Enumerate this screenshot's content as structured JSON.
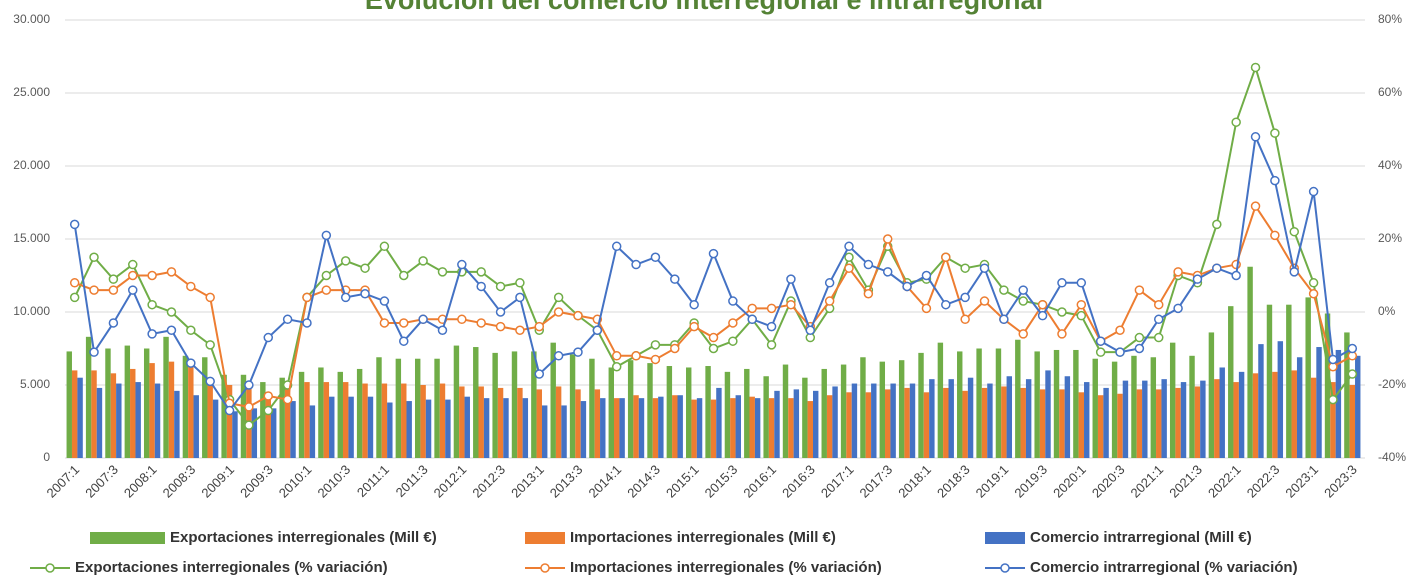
{
  "chart_data": {
    "type": "bar",
    "title": "Evolución del comercio interregional e intrarregional",
    "categories": [
      "2007:1",
      null,
      "2007:3",
      null,
      "2008:1",
      null,
      "2008:3",
      null,
      "2009:1",
      null,
      "2009:3",
      null,
      "2010:1",
      null,
      "2010:3",
      null,
      "2011:1",
      null,
      "2011:3",
      null,
      "2012:1",
      null,
      "2012:3",
      null,
      "2013:1",
      null,
      "2013:3",
      null,
      "2014:1",
      null,
      "2014:3",
      null,
      "2015:1",
      null,
      "2015:3",
      null,
      "2016:1",
      null,
      "2016:3",
      null,
      "2017:1",
      null,
      "2017:3",
      null,
      "2018:1",
      null,
      "2018:3",
      null,
      "2019:1",
      null,
      "2019:3",
      null,
      "2020:1",
      null,
      "2020:3",
      null,
      "2021:1",
      null,
      "2021:3",
      null,
      "2022:1",
      null,
      "2022:3",
      null,
      "2023:1",
      null,
      "2023:3"
    ],
    "ylim": [
      0,
      30000
    ],
    "yticks": [
      0,
      {
        "value": 5000,
        "label": "5.000"
      },
      {
        "value": 10000,
        "label": "10.000"
      },
      {
        "value": 15000,
        "label": "15.000"
      },
      {
        "value": 20000,
        "label": "20.000"
      },
      {
        "value": 25000,
        "label": "25.000"
      },
      {
        "value": 30000,
        "label": "30.000"
      }
    ],
    "y2lim": [
      -40,
      80
    ],
    "y2ticks": [
      {
        "value": -40,
        "label": "-40%"
      },
      {
        "value": -20,
        "label": "-20%"
      },
      {
        "value": 0,
        "label": "0%"
      },
      {
        "value": 20,
        "label": "20%"
      },
      {
        "value": 40,
        "label": "40%"
      },
      {
        "value": 60,
        "label": "60%"
      },
      {
        "value": 80,
        "label": "80%"
      }
    ],
    "grid": true,
    "legend": "bottom",
    "series": [
      {
        "name": "Exportaciones interregionales (Mill €)",
        "type": "bar",
        "color": "#70ad47",
        "values": [
          7300,
          8300,
          7500,
          7700,
          7500,
          8300,
          7000,
          6900,
          5700,
          5700,
          5200,
          5500,
          5900,
          6200,
          5900,
          6100,
          6900,
          6800,
          6800,
          6800,
          7700,
          7600,
          7200,
          7300,
          7300,
          7900,
          7100,
          6800,
          6200,
          6700,
          6500,
          6300,
          6200,
          6300,
          5900,
          6100,
          5600,
          6400,
          5500,
          6100,
          6400,
          6900,
          6600,
          6700,
          7200,
          7900,
          7300,
          7500,
          7500,
          8100,
          7300,
          7400,
          7400,
          6800,
          6600,
          7000,
          6900,
          7900,
          7000,
          8600,
          10400,
          13100,
          10500,
          10500,
          11000,
          9900,
          8600
        ]
      },
      {
        "name": "Importaciones interregionales (Mill €)",
        "type": "bar",
        "color": "#ed7d31",
        "values": [
          6000,
          6000,
          5800,
          6100,
          6500,
          6600,
          6300,
          5000,
          5000,
          4900,
          4500,
          4800,
          5200,
          5200,
          5200,
          5100,
          5100,
          5100,
          5000,
          5100,
          4900,
          4900,
          4800,
          4800,
          4700,
          4900,
          4700,
          4700,
          4100,
          4300,
          4100,
          4300,
          4000,
          4000,
          4100,
          4200,
          4100,
          4100,
          3900,
          4300,
          4500,
          4500,
          4700,
          4800,
          4500,
          4800,
          4600,
          4800,
          4900,
          4800,
          4700,
          4700,
          4500,
          4300,
          4400,
          4700,
          4700,
          4800,
          4900,
          5400,
          5200,
          5800,
          5900,
          6000,
          5500,
          5200,
          5000
        ]
      },
      {
        "name": "Comercio intrarregional (Mill €)",
        "type": "bar",
        "color": "#4472c4",
        "values": [
          5500,
          4800,
          5100,
          5200,
          5100,
          4600,
          4300,
          4000,
          3200,
          3400,
          3400,
          3900,
          3600,
          4200,
          4200,
          4200,
          3800,
          3900,
          4000,
          4000,
          4200,
          4100,
          4100,
          4100,
          3600,
          3600,
          3900,
          4100,
          4100,
          4100,
          4200,
          4300,
          4100,
          4800,
          4300,
          4100,
          4600,
          4700,
          4600,
          4900,
          5100,
          5100,
          5100,
          5100,
          5400,
          5400,
          5500,
          5100,
          5600,
          5400,
          6000,
          5600,
          5200,
          4800,
          5300,
          5300,
          5400,
          5200,
          5300,
          6200,
          5900,
          7800,
          8000,
          6900,
          7600,
          7400,
          7000
        ]
      },
      {
        "name": "Exportaciones interregionales  (% variación)",
        "type": "line",
        "axis": "y2",
        "color": "#70ad47",
        "values": [
          4,
          15,
          9,
          13,
          2,
          0,
          -5,
          -9,
          -24,
          -31,
          -27,
          -20,
          4,
          10,
          14,
          12,
          18,
          10,
          14,
          11,
          11,
          11,
          7,
          8,
          -5,
          4,
          -1,
          -5,
          -15,
          -12,
          -9,
          -9,
          -3,
          -10,
          -8,
          -2,
          -9,
          3,
          -7,
          1,
          15,
          6,
          18,
          8,
          9,
          15,
          12,
          13,
          6,
          3,
          2,
          0,
          -1,
          -11,
          -11,
          -7,
          -7,
          10,
          8,
          24,
          52,
          67,
          49,
          22,
          8,
          -24,
          -17
        ]
      },
      {
        "name": "Importaciones interregionales (% variación)",
        "type": "line",
        "axis": "y2",
        "color": "#ed7d31",
        "values": [
          8,
          6,
          6,
          10,
          10,
          11,
          7,
          4,
          -25,
          -26,
          -23,
          -24,
          4,
          6,
          6,
          6,
          -3,
          -3,
          -2,
          -2,
          -2,
          -3,
          -4,
          -5,
          -4,
          0,
          -1,
          -2,
          -12,
          -12,
          -13,
          -10,
          -4,
          -7,
          -3,
          1,
          1,
          2,
          -4,
          3,
          12,
          5,
          20,
          7,
          1,
          15,
          -2,
          3,
          -2,
          -6,
          2,
          -6,
          2,
          -8,
          -5,
          6,
          2,
          11,
          10,
          12,
          13,
          29,
          21,
          12,
          5,
          -15,
          -12
        ]
      },
      {
        "name": "Comercio intrarregional (% variación)",
        "type": "line",
        "axis": "y2",
        "color": "#4472c4",
        "values": [
          24,
          -11,
          -3,
          6,
          -6,
          -5,
          -14,
          -19,
          -27,
          -20,
          -7,
          -2,
          -3,
          21,
          4,
          5,
          3,
          -8,
          -2,
          -5,
          13,
          7,
          0,
          4,
          -17,
          -12,
          -11,
          -5,
          18,
          13,
          15,
          9,
          2,
          16,
          3,
          -2,
          -4,
          9,
          -5,
          8,
          18,
          13,
          11,
          7,
          10,
          2,
          4,
          12,
          -2,
          6,
          -1,
          8,
          8,
          -8,
          -11,
          -10,
          -2,
          1,
          9,
          12,
          10,
          48,
          36,
          11,
          33,
          -13,
          -10
        ]
      }
    ]
  }
}
